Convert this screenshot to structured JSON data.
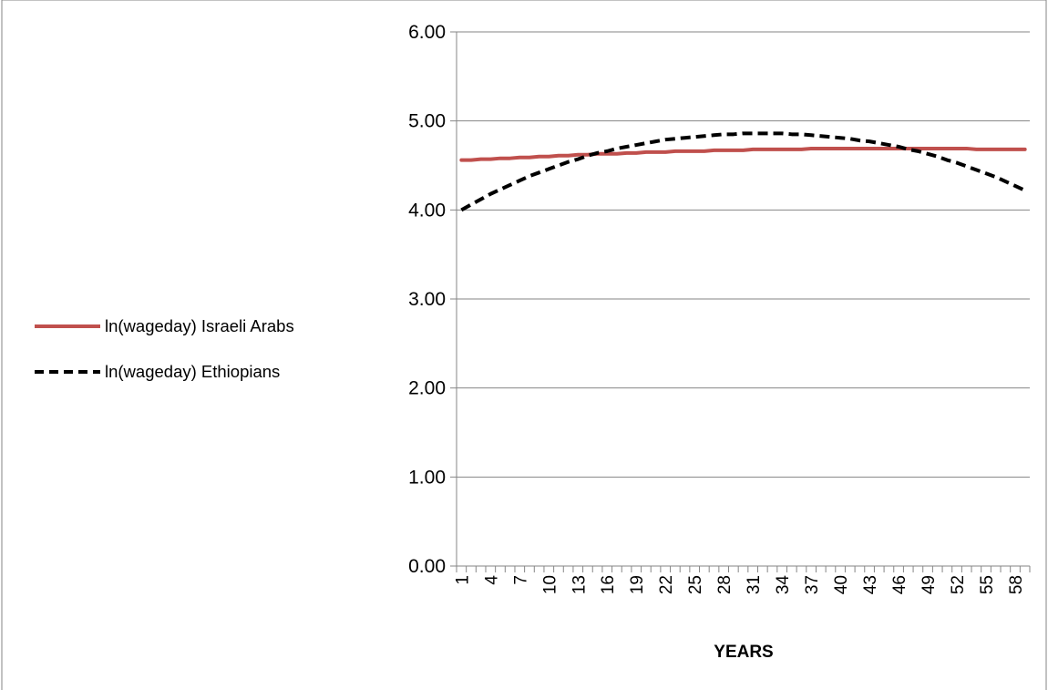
{
  "colors": {
    "israeli_arabs": "#c0504d",
    "ethiopians": "#000000",
    "gridline": "#868686",
    "frame": "#868686"
  },
  "chart_data": {
    "type": "line",
    "title": "",
    "xlabel": "YEARS",
    "ylabel": "",
    "ylim": [
      0,
      6
    ],
    "yticks": [
      "0.00",
      "1.00",
      "2.00",
      "3.00",
      "4.00",
      "5.00",
      "6.00"
    ],
    "x": [
      1,
      2,
      3,
      4,
      5,
      6,
      7,
      8,
      9,
      10,
      11,
      12,
      13,
      14,
      15,
      16,
      17,
      18,
      19,
      20,
      21,
      22,
      23,
      24,
      25,
      26,
      27,
      28,
      29,
      30,
      31,
      32,
      33,
      34,
      35,
      36,
      37,
      38,
      39,
      40,
      41,
      42,
      43,
      44,
      45,
      46,
      47,
      48,
      49,
      50,
      51,
      52,
      53,
      54,
      55,
      56,
      57,
      58,
      59
    ],
    "xtick_labels": [
      "1",
      "4",
      "7",
      "10",
      "13",
      "16",
      "19",
      "22",
      "25",
      "28",
      "31",
      "34",
      "37",
      "40",
      "43",
      "46",
      "49",
      "52",
      "55",
      "58"
    ],
    "grid": true,
    "legend_position": "left",
    "series": [
      {
        "name": "ln(wageday) Israeli Arabs",
        "style": "solid",
        "values": [
          4.56,
          4.56,
          4.57,
          4.57,
          4.58,
          4.58,
          4.59,
          4.59,
          4.6,
          4.6,
          4.61,
          4.61,
          4.62,
          4.62,
          4.63,
          4.63,
          4.63,
          4.64,
          4.64,
          4.65,
          4.65,
          4.65,
          4.66,
          4.66,
          4.66,
          4.66,
          4.67,
          4.67,
          4.67,
          4.67,
          4.68,
          4.68,
          4.68,
          4.68,
          4.68,
          4.68,
          4.69,
          4.69,
          4.69,
          4.69,
          4.69,
          4.69,
          4.69,
          4.69,
          4.69,
          4.69,
          4.69,
          4.69,
          4.69,
          4.69,
          4.69,
          4.69,
          4.69,
          4.68,
          4.68,
          4.68,
          4.68,
          4.68,
          4.68
        ]
      },
      {
        "name": "ln(wageday) Ethiopians",
        "style": "dashed",
        "values": [
          4.0,
          4.06,
          4.12,
          4.18,
          4.23,
          4.28,
          4.33,
          4.38,
          4.42,
          4.46,
          4.5,
          4.54,
          4.57,
          4.61,
          4.64,
          4.66,
          4.69,
          4.71,
          4.73,
          4.75,
          4.77,
          4.79,
          4.8,
          4.81,
          4.82,
          4.83,
          4.84,
          4.85,
          4.85,
          4.86,
          4.86,
          4.86,
          4.86,
          4.86,
          4.85,
          4.85,
          4.84,
          4.83,
          4.82,
          4.81,
          4.8,
          4.78,
          4.77,
          4.75,
          4.73,
          4.71,
          4.68,
          4.66,
          4.63,
          4.6,
          4.56,
          4.53,
          4.49,
          4.45,
          4.41,
          4.37,
          4.32,
          4.27,
          4.22
        ]
      }
    ]
  }
}
